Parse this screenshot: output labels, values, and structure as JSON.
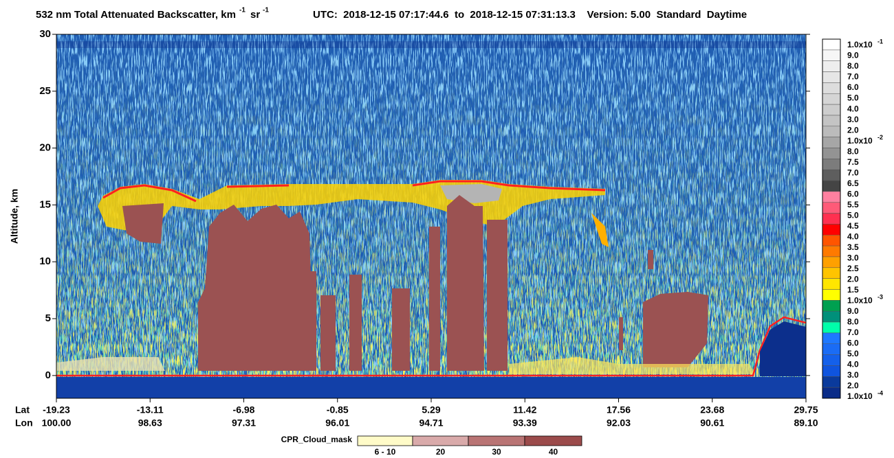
{
  "chart_data": {
    "type": "curtain",
    "title": "532 nm Total Attenuated Backscatter, km",
    "title_unit_exp": "-1",
    "title_unit2": "sr",
    "title_unit2_exp": "-1",
    "subtitle": "UTC:  2018-12-15 07:17:44.6  to  2018-12-15 07:31:13.3    Version: 5.00  Standard  Daytime",
    "y_label": "Altitude, km",
    "ylim": [
      -2,
      30
    ],
    "yticks": [
      0,
      5,
      10,
      15,
      20,
      25,
      30
    ],
    "x_row_labels": [
      "Lat",
      "Lon"
    ],
    "lat_labels": [
      "-19.23",
      "-13.11",
      "-6.98",
      "-0.85",
      "5.29",
      "11.42",
      "17.56",
      "23.68",
      "29.75"
    ],
    "lon_labels": [
      "100.00",
      "98.63",
      "97.31",
      "96.01",
      "94.71",
      "93.39",
      "92.03",
      "90.61",
      "89.10"
    ],
    "colorbar": {
      "labels": [
        {
          "text": "1.0x10",
          "exp": "-1"
        },
        {
          "text": "9.0"
        },
        {
          "text": "8.0"
        },
        {
          "text": "7.0"
        },
        {
          "text": "6.0"
        },
        {
          "text": "5.0"
        },
        {
          "text": "4.0"
        },
        {
          "text": "3.0"
        },
        {
          "text": "2.0"
        },
        {
          "text": "1.0x10",
          "exp": "-2"
        },
        {
          "text": "8.0"
        },
        {
          "text": "7.5"
        },
        {
          "text": "7.0"
        },
        {
          "text": "6.5"
        },
        {
          "text": "6.0"
        },
        {
          "text": "5.5"
        },
        {
          "text": "5.0"
        },
        {
          "text": "4.5"
        },
        {
          "text": "4.0"
        },
        {
          "text": "3.5"
        },
        {
          "text": "3.0"
        },
        {
          "text": "2.5"
        },
        {
          "text": "2.0"
        },
        {
          "text": "1.5"
        },
        {
          "text": "1.0x10",
          "exp": "-3"
        },
        {
          "text": "9.0"
        },
        {
          "text": "8.0"
        },
        {
          "text": "7.0"
        },
        {
          "text": "6.0"
        },
        {
          "text": "5.0"
        },
        {
          "text": "4.0"
        },
        {
          "text": "3.0"
        },
        {
          "text": "2.0"
        },
        {
          "text": "1.0x10",
          "exp": "-4"
        }
      ],
      "colors": [
        "#ffffff",
        "#f6f6f6",
        "#eeeeee",
        "#e6e6e6",
        "#dddddd",
        "#d5d5d5",
        "#cdcdcd",
        "#c4c4c4",
        "#bbbbbb",
        "#a6a6a6",
        "#939393",
        "#7c7c7c",
        "#5e5e5e",
        "#444444",
        "#ff80a0",
        "#ff5a78",
        "#ff3050",
        "#ff0000",
        "#ff5500",
        "#ff7a00",
        "#ffa000",
        "#ffc400",
        "#ffe600",
        "#ffff00",
        "#00a050",
        "#00907a",
        "#00ffaa",
        "#1e78ff",
        "#1a6cf5",
        "#1460ea",
        "#0f54de",
        "#0a3a9c",
        "#0a2c88"
      ]
    },
    "legend": {
      "title": "CPR_Cloud_mask",
      "labels": [
        "6 - 10",
        "20",
        "30",
        "40"
      ],
      "colors": [
        "#fffbc8",
        "#d9aaaa",
        "#b97474",
        "#9b4b4b"
      ]
    }
  }
}
